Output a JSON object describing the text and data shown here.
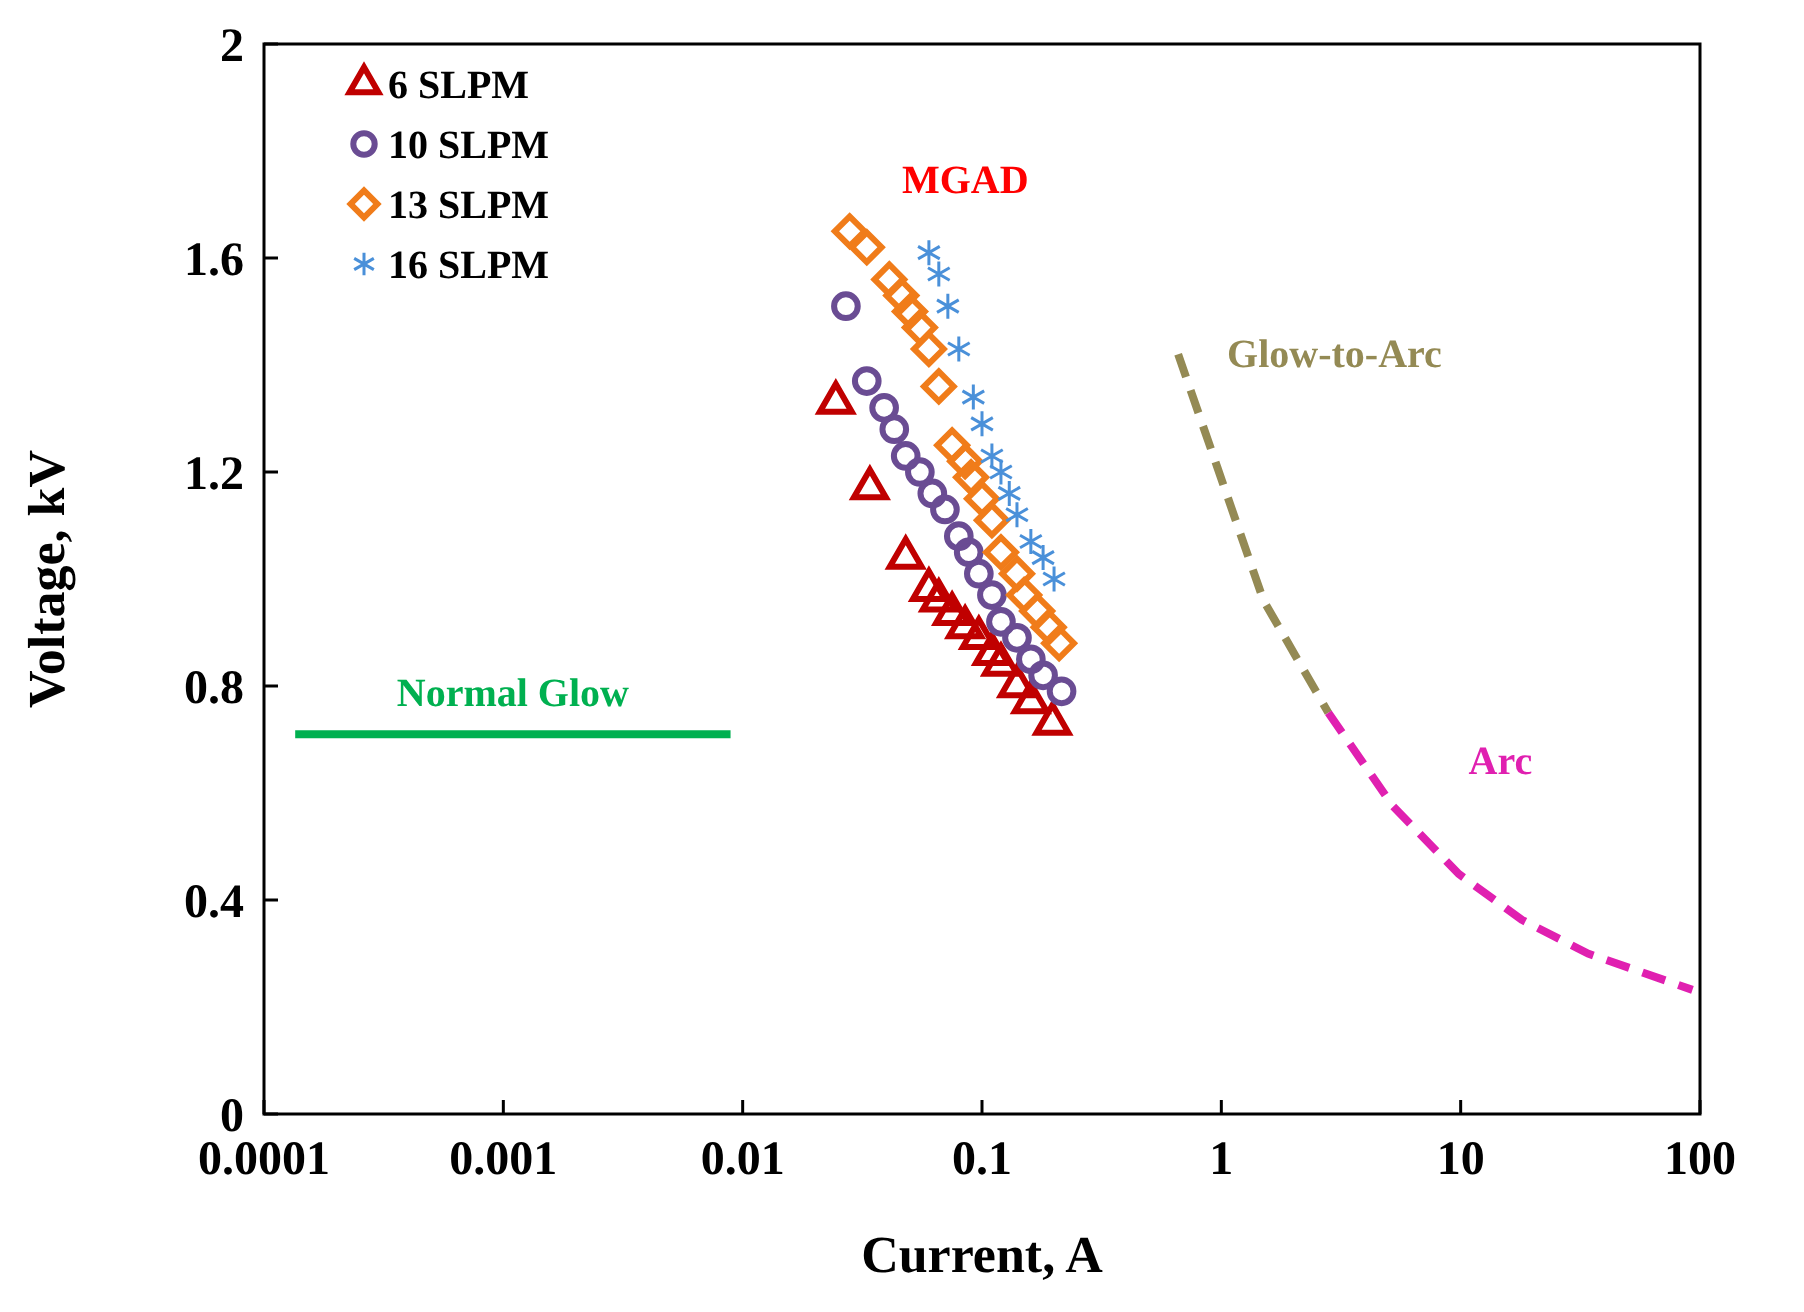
{
  "chart_data": {
    "type": "scatter",
    "xlabel": "Current, A",
    "ylabel": "Voltage, kV",
    "log": "x",
    "xlim": [
      0.0001,
      100
    ],
    "xticks": [
      0.0001,
      0.001,
      0.01,
      0.1,
      1,
      10,
      100
    ],
    "ylim": [
      0,
      2
    ],
    "yticks": [
      0,
      0.4,
      0.8,
      1.2,
      1.6,
      2
    ],
    "grid": false,
    "legend": "top left",
    "annotations": [
      "MGAD"
    ],
    "series": [
      {
        "name": "6 SLPM",
        "color": "#c00000",
        "marker": "triangle",
        "x": [
          0.0245,
          0.034,
          0.048,
          0.06,
          0.066,
          0.075,
          0.085,
          0.097,
          0.11,
          0.12,
          0.14,
          0.16,
          0.197
        ],
        "values": [
          1.33,
          1.17,
          1.04,
          0.98,
          0.96,
          0.935,
          0.91,
          0.89,
          0.86,
          0.84,
          0.8,
          0.77,
          0.73
        ]
      },
      {
        "name": "10 SLPM",
        "color": "#6a4c93",
        "marker": "circle",
        "x": [
          0.027,
          0.033,
          0.039,
          0.043,
          0.048,
          0.055,
          0.062,
          0.07,
          0.08,
          0.088,
          0.097,
          0.11,
          0.12,
          0.14,
          0.16,
          0.18,
          0.215
        ],
        "values": [
          1.51,
          1.37,
          1.32,
          1.28,
          1.23,
          1.2,
          1.16,
          1.13,
          1.08,
          1.05,
          1.01,
          0.97,
          0.92,
          0.89,
          0.85,
          0.82,
          0.79
        ]
      },
      {
        "name": "13 SLPM",
        "color": "#f07c1a",
        "marker": "diamond",
        "x": [
          0.028,
          0.033,
          0.041,
          0.046,
          0.05,
          0.055,
          0.06,
          0.066,
          0.075,
          0.085,
          0.09,
          0.1,
          0.11,
          0.12,
          0.14,
          0.15,
          0.17,
          0.19,
          0.21
        ],
        "values": [
          1.65,
          1.62,
          1.56,
          1.53,
          1.5,
          1.47,
          1.43,
          1.36,
          1.25,
          1.22,
          1.19,
          1.15,
          1.11,
          1.05,
          1.01,
          0.97,
          0.94,
          0.91,
          0.88
        ]
      },
      {
        "name": "16 SLPM",
        "color": "#4a90d9",
        "marker": "cross",
        "x": [
          0.06,
          0.066,
          0.072,
          0.08,
          0.092,
          0.1,
          0.11,
          0.12,
          0.13,
          0.14,
          0.16,
          0.18,
          0.2
        ],
        "values": [
          1.61,
          1.57,
          1.51,
          1.43,
          1.34,
          1.29,
          1.23,
          1.2,
          1.16,
          1.12,
          1.07,
          1.04,
          1.0
        ]
      },
      {
        "name": "Normal Glow",
        "type": "line",
        "color": "#00b050",
        "marker": "none",
        "line_style": "solid",
        "x": [
          0.000135,
          0.0089
        ],
        "values": [
          0.71,
          0.71
        ]
      },
      {
        "name": "Glow-to-Arc",
        "type": "line",
        "color": "#948a54",
        "marker": "none",
        "line_style": "dashed",
        "x": [
          0.66,
          0.96,
          1.5,
          2.8
        ],
        "values": [
          1.42,
          1.21,
          0.96,
          0.75
        ]
      },
      {
        "name": "Arc",
        "type": "line",
        "color": "#e020b0",
        "marker": "none",
        "line_style": "dashed",
        "x": [
          2.8,
          5.2,
          9.8,
          18,
          34,
          93
        ],
        "values": [
          0.75,
          0.576,
          0.449,
          0.363,
          0.3,
          0.232
        ]
      }
    ]
  }
}
